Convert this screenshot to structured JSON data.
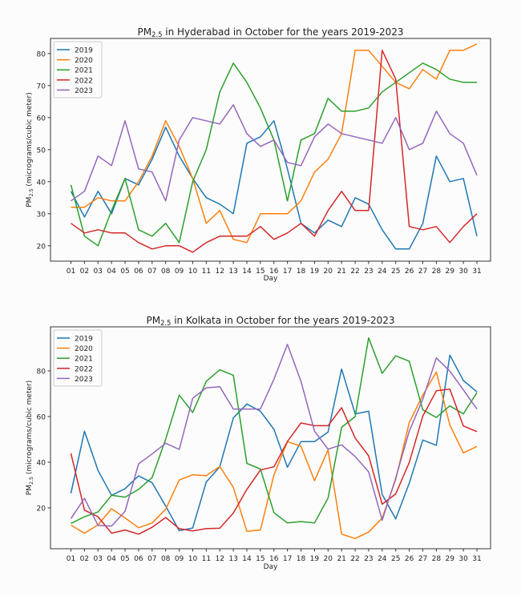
{
  "chart_data": [
    {
      "type": "line",
      "title": {
        "prefix": "PM",
        "sub": "2.5",
        "suffix": " in Hyderabad in October for the years 2019-2023"
      },
      "xlabel": "Day",
      "ylabel": {
        "prefix": "PM",
        "sub": "2.5",
        "suffix": " (micrograms/cubic meter)"
      },
      "ylim": [
        15.2,
        84.7
      ],
      "yticks": [
        20,
        30,
        40,
        50,
        60,
        70,
        80
      ],
      "grid": false,
      "legend": "top-left",
      "categories": [
        "01",
        "02",
        "03",
        "04",
        "05",
        "06",
        "07",
        "08",
        "09",
        "10",
        "11",
        "12",
        "13",
        "14",
        "15",
        "16",
        "17",
        "18",
        "19",
        "20",
        "21",
        "22",
        "23",
        "24",
        "25",
        "26",
        "27",
        "28",
        "29",
        "30",
        "31"
      ],
      "series": [
        {
          "name": "2019",
          "color": "#1f77b4",
          "values": [
            37,
            29,
            37,
            30,
            41,
            39,
            47,
            57,
            48,
            41,
            35,
            33,
            30,
            52,
            54,
            59,
            44,
            27,
            24,
            28,
            26,
            35,
            33,
            25,
            19,
            19,
            27,
            48,
            40,
            41,
            23
          ]
        },
        {
          "name": "2020",
          "color": "#ff7f0e",
          "values": [
            32,
            32,
            35,
            34,
            34,
            40,
            48,
            59,
            51,
            41,
            27,
            31,
            22,
            21,
            30,
            30,
            30,
            34,
            43,
            47,
            55,
            81,
            81,
            76,
            71,
            69,
            75,
            72,
            81,
            81,
            83
          ]
        },
        {
          "name": "2021",
          "color": "#2ca02c",
          "values": [
            39,
            23,
            20,
            31,
            41,
            25,
            23,
            27,
            21,
            40,
            50,
            68,
            77,
            71,
            63,
            53,
            34,
            53,
            55,
            66,
            62,
            62,
            63,
            68,
            71,
            74,
            77,
            75,
            72,
            71,
            71
          ]
        },
        {
          "name": "2022",
          "color": "#d62728",
          "values": [
            27,
            24,
            25,
            24,
            24,
            21,
            19,
            20,
            20,
            18,
            21,
            23,
            23,
            23,
            26,
            22,
            24,
            27,
            23,
            31,
            37,
            31,
            31,
            81,
            72,
            26,
            25,
            26,
            21,
            26,
            30
          ]
        },
        {
          "name": "2023",
          "color": "#9467bd",
          "values": [
            34,
            37,
            48,
            45,
            59,
            44,
            43,
            34,
            53,
            60,
            59,
            58,
            64,
            55,
            51,
            53,
            46,
            45,
            54,
            58,
            55,
            54,
            53,
            52,
            60,
            50,
            52,
            62,
            55,
            52,
            42
          ]
        }
      ]
    },
    {
      "type": "line",
      "title": {
        "prefix": "PM",
        "sub": "2.5",
        "suffix": " in Kolkata in October for the years 2019-2023"
      },
      "xlabel": "Day",
      "ylabel": {
        "prefix": "PM",
        "sub": "2.5",
        "suffix": " (micrograms/cubic meter)"
      },
      "ylim": [
        2.1,
        99.3
      ],
      "yticks": [
        20,
        40,
        60,
        80
      ],
      "grid": false,
      "legend": "top-left",
      "categories": [
        "01",
        "02",
        "03",
        "04",
        "05",
        "06",
        "07",
        "08",
        "09",
        "10",
        "11",
        "12",
        "13",
        "14",
        "15",
        "16",
        "17",
        "18",
        "19",
        "20",
        "21",
        "22",
        "23",
        "24",
        "25",
        "26",
        "27",
        "28",
        "29",
        "30",
        "31"
      ],
      "series": [
        {
          "name": "2019",
          "color": "#1f77b4",
          "values": [
            26.4,
            53.6,
            36.4,
            25.5,
            28.4,
            34,
            31,
            20.8,
            10,
            11.2,
            31.3,
            38,
            59.4,
            65.5,
            62.3,
            54.4,
            37.8,
            49,
            49,
            53.2,
            80.8,
            61.2,
            62.3,
            25.9,
            15.2,
            30.8,
            49.7,
            47.4,
            86.9,
            75.8,
            70.8
          ]
        },
        {
          "name": "2020",
          "color": "#ff7f0e",
          "values": [
            12.4,
            8.9,
            12.6,
            19.6,
            15.6,
            11.3,
            13.4,
            19.4,
            32.2,
            34.5,
            34.1,
            38.1,
            29,
            9.7,
            10.3,
            34.5,
            49,
            47,
            31.9,
            45.4,
            8.5,
            6.6,
            9.4,
            15.5,
            32.5,
            57.4,
            69.4,
            79.5,
            56.3,
            44.1,
            46.9
          ]
        },
        {
          "name": "2021",
          "color": "#2ca02c",
          "values": [
            13.2,
            16.1,
            18.2,
            25.5,
            24.7,
            28.1,
            33.3,
            50.1,
            69.4,
            61.8,
            75.4,
            80.5,
            78.1,
            39.5,
            37,
            17.9,
            13.4,
            14,
            13.4,
            24.3,
            55.3,
            60,
            94.5,
            78.9,
            86.6,
            84.2,
            62.9,
            59.6,
            64.7,
            61.2,
            70.5
          ]
        },
        {
          "name": "2022",
          "color": "#d62728",
          "values": [
            43.9,
            19,
            16.1,
            8.9,
            10.3,
            8.5,
            11.5,
            15.8,
            10.9,
            9.9,
            10.9,
            11.1,
            17.7,
            28.1,
            36.6,
            38,
            49.1,
            57.2,
            56,
            56,
            63.9,
            50.6,
            42.8,
            21.6,
            26.1,
            39.9,
            60.2,
            71.3,
            72,
            55.9,
            53.4
          ]
        },
        {
          "name": "2023",
          "color": "#9467bd",
          "values": [
            15.3,
            24.2,
            12.3,
            12,
            18.5,
            39.3,
            43.6,
            48.3,
            45.6,
            68,
            72.6,
            73.1,
            63.3,
            63.3,
            63.3,
            76.4,
            91.6,
            75.4,
            53.6,
            45.7,
            47.6,
            42.5,
            35.8,
            14.6,
            33.1,
            53.6,
            67.6,
            85.7,
            79.9,
            71.7,
            63.3
          ]
        }
      ]
    }
  ]
}
